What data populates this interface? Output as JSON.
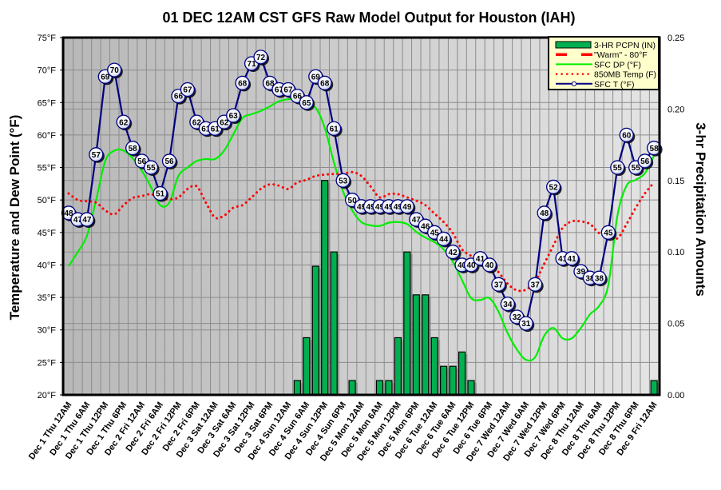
{
  "chart_data": {
    "type": "line",
    "title": "01 DEC 12AM CST GFS Raw Model Output for Houston (IAH)",
    "ylabel": "Temperature and Dew Point (°F)",
    "y2label": "3-hr Precipitation Amounts",
    "ylim": [
      20,
      75
    ],
    "y2lim": [
      0,
      0.25
    ],
    "grid": true,
    "legend_position": "top-right",
    "y_ticks": [
      "75°F",
      "70°F",
      "65°F",
      "60°F",
      "55°F",
      "50°F",
      "45°F",
      "40°F",
      "35°F",
      "30°F",
      "25°F",
      "20°F"
    ],
    "y_tick_values": [
      75,
      70,
      65,
      60,
      55,
      50,
      45,
      40,
      35,
      30,
      25,
      20
    ],
    "y2_ticks": [
      "0.25",
      "0.20",
      "0.15",
      "0.10",
      "0.05",
      "0.00"
    ],
    "y2_tick_values": [
      0.25,
      0.2,
      0.15,
      0.1,
      0.05,
      0.0
    ],
    "x_step_hours": 3,
    "x_tick_every": 2,
    "x_ticks": [
      "Dec 1 Thu 12AM",
      "Dec 1 Thu 6AM",
      "Dec 1 Thu 12PM",
      "Dec 1 Thu 6PM",
      "Dec 2 Fri 12AM",
      "Dec 2 Fri 6AM",
      "Dec 2 Fri 12PM",
      "Dec 2 Fri 6PM",
      "Dec 3 Sat 12AM",
      "Dec 3 Sat 6AM",
      "Dec 3 Sat 12PM",
      "Dec 3 Sat 6PM",
      "Dec 4 Sun 12AM",
      "Dec 4 Sun 6AM",
      "Dec 4 Sun 12PM",
      "Dec 4 Sun 6PM",
      "Dec 5 Mon 12AM",
      "Dec 5 Mon 6AM",
      "Dec 5 Mon 12PM",
      "Dec 5 Mon 6PM",
      "Dec 6 Tue 12AM",
      "Dec 6 Tue 6AM",
      "Dec 6 Tue 12PM",
      "Dec 6 Tue 6PM",
      "Dec 7 Wed 12AM",
      "Dec 7 Wed 6AM",
      "Dec 7 Wed 12PM",
      "Dec 7 Wed 6PM",
      "Dec 8 Thu 12AM",
      "Dec 8 Thu 6AM",
      "Dec 8 Thu 12PM",
      "Dec 8 Thu 6PM",
      "Dec 9 Fri 12AM"
    ],
    "series": [
      {
        "name": "SFC T (°F)",
        "kind": "line-markers-labeled",
        "color": "#000080",
        "values": [
          48,
          47,
          47,
          57,
          69,
          70,
          62,
          58,
          56,
          55,
          51,
          56,
          66,
          67,
          62,
          61,
          61,
          62,
          63,
          68,
          71,
          72,
          68,
          67,
          67,
          66,
          65,
          69,
          68,
          61,
          53,
          50,
          49,
          49,
          49,
          49,
          49,
          49,
          47,
          46,
          45,
          44,
          42,
          40,
          40,
          41,
          40,
          37,
          34,
          32,
          31,
          37,
          48,
          52,
          41,
          41,
          39,
          38,
          38,
          45,
          55,
          60,
          55,
          56,
          58
        ]
      },
      {
        "name": "SFC DP (°F)",
        "kind": "smooth-line",
        "color": "#00ee00",
        "values": [
          39.8,
          42,
          44.5,
          50,
          56,
          57.6,
          57.6,
          56.4,
          54.5,
          52,
          49.2,
          49.6,
          53.7,
          55,
          56,
          56.3,
          56.3,
          57.6,
          60.1,
          62.6,
          63.2,
          63.7,
          64.4,
          65.2,
          65.5,
          65.5,
          64.4,
          64.2,
          61.1,
          55.8,
          51.3,
          48.4,
          46.6,
          46.1,
          46,
          46.5,
          46.6,
          46.3,
          45.1,
          44.2,
          43.5,
          42.4,
          40.5,
          37.7,
          34.9,
          34.6,
          34.9,
          32.8,
          29.5,
          27,
          25.4,
          25.8,
          29.1,
          30.3,
          28.7,
          28.7,
          30.3,
          32.4,
          33.7,
          36.9,
          47.6,
          52.2,
          53.1,
          54.1,
          56.8
        ]
      },
      {
        "name": "850MB Temp (F)",
        "kind": "dotted-line",
        "color": "#ff0000",
        "values": [
          51,
          50,
          49.8,
          49.6,
          48.4,
          47.8,
          49.2,
          50.3,
          50.6,
          50.9,
          50.3,
          50.1,
          50.4,
          51.7,
          52.1,
          49.6,
          47.3,
          47.6,
          48.8,
          49.2,
          50.4,
          51.7,
          52.4,
          52.2,
          51.7,
          52.7,
          53.1,
          53.7,
          53.9,
          54,
          54,
          54.3,
          53.7,
          52.1,
          50.4,
          50.9,
          50.9,
          50.4,
          49.9,
          49.2,
          47.9,
          46.6,
          44.9,
          42.4,
          41.4,
          40.5,
          40.4,
          38.9,
          37.1,
          36.1,
          36.2,
          37.5,
          40.2,
          43,
          45.7,
          46.7,
          46.7,
          46.3,
          44.9,
          44.5,
          44.1,
          46.3,
          48.8,
          51,
          52.7
        ]
      },
      {
        "name": "\"Warm\" - 80°F",
        "kind": "dashed-line",
        "color": "#ff0000",
        "constant": 80
      },
      {
        "name": "3-HR PCPN (IN)",
        "kind": "bar",
        "axis": "right",
        "color": "#00b050",
        "values": [
          0,
          0,
          0,
          0,
          0,
          0,
          0,
          0,
          0,
          0,
          0,
          0,
          0,
          0,
          0,
          0,
          0,
          0,
          0,
          0,
          0,
          0,
          0,
          0,
          0,
          0.01,
          0.04,
          0.09,
          0.15,
          0.1,
          0,
          0.01,
          0,
          0,
          0.01,
          0.01,
          0.04,
          0.1,
          0.07,
          0.07,
          0.04,
          0.02,
          0.02,
          0.03,
          0.01,
          0,
          0,
          0,
          0,
          0,
          0,
          0,
          0,
          0,
          0,
          0,
          0,
          0,
          0,
          0,
          0,
          0,
          0,
          0,
          0.01
        ]
      }
    ],
    "legend": [
      {
        "label": "3-HR PCPN (IN)",
        "symbol": "bar",
        "color": "#00b050"
      },
      {
        "label": "\"Warm\" - 80°F",
        "symbol": "dashed",
        "color": "#ff0000"
      },
      {
        "label": "SFC DP (°F)",
        "symbol": "line",
        "color": "#00ee00"
      },
      {
        "label": "850MB Temp (F)",
        "symbol": "dotted",
        "color": "#ff0000"
      },
      {
        "label": "SFC T (°F)",
        "symbol": "line-marker",
        "color": "#000080"
      }
    ]
  }
}
